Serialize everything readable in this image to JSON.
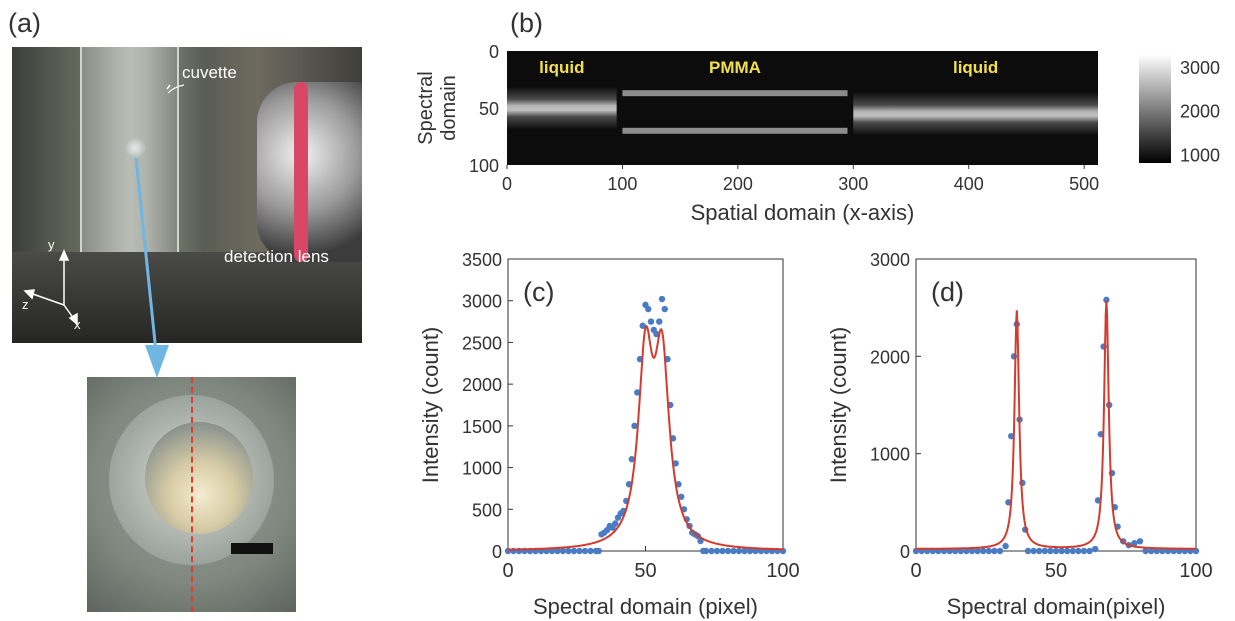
{
  "panels": {
    "a": {
      "label": "(a)",
      "cuvette": "cuvette",
      "detection_lens": "detection lens",
      "axes": {
        "y": "y",
        "z": "z",
        "x": "x"
      }
    },
    "b": {
      "label": "(b)"
    },
    "c": {
      "label": "(c)"
    },
    "d": {
      "label": "(d)"
    }
  },
  "chart_data": [
    {
      "id": "b",
      "type": "heatmap",
      "xlabel": "Spatial domain (x-axis)",
      "ylabel": "Spectral domain",
      "xlim": [
        0,
        512
      ],
      "ylim": [
        0,
        100
      ],
      "xticks": [
        0,
        100,
        200,
        300,
        400,
        500
      ],
      "yticks": [
        0,
        50,
        100
      ],
      "colorbar_ticks": [
        1000,
        2000,
        3000
      ],
      "colormap": "gray",
      "regions": [
        {
          "label": "liquid",
          "x": [
            0,
            95
          ],
          "band_center": 50,
          "type": "single band"
        },
        {
          "label": "PMMA",
          "x": [
            100,
            295
          ],
          "band_center": [
            37,
            70
          ],
          "type": "double band"
        },
        {
          "label": "liquid",
          "x": [
            300,
            512
          ],
          "band_center": 55,
          "type": "single band"
        }
      ],
      "annotation_color": "#f2e04a"
    },
    {
      "id": "c",
      "type": "scatter",
      "xlabel": "Spectral domain (pixel)",
      "ylabel": "Intensity (count)",
      "xlim": [
        0,
        100
      ],
      "ylim": [
        0,
        3500
      ],
      "xticks": [
        0,
        50,
        100
      ],
      "yticks": [
        0,
        500,
        1000,
        1500,
        2000,
        2500,
        3000,
        3500
      ],
      "series": [
        {
          "kind": "points",
          "color": "#4a7cc4",
          "x": [
            0,
            2,
            4,
            6,
            8,
            10,
            12,
            14,
            16,
            18,
            20,
            22,
            24,
            26,
            28,
            30,
            32,
            33,
            34,
            35,
            36,
            37,
            38,
            39,
            40,
            41,
            42,
            43,
            44,
            45,
            46,
            47,
            48,
            49,
            50,
            51,
            52,
            53,
            54,
            55,
            56,
            57,
            58,
            59,
            60,
            61,
            62,
            63,
            64,
            65,
            66,
            67,
            68,
            69,
            70,
            71,
            72,
            74,
            76,
            78,
            80,
            82,
            84,
            86,
            88,
            90,
            92,
            94,
            96,
            98,
            100
          ],
          "y": [
            0,
            0,
            0,
            0,
            0,
            0,
            0,
            0,
            0,
            0,
            0,
            0,
            0,
            0,
            0,
            0,
            0,
            0,
            200,
            220,
            250,
            300,
            280,
            330,
            400,
            450,
            480,
            600,
            800,
            1100,
            1500,
            1900,
            2300,
            2700,
            2950,
            2900,
            2750,
            2650,
            2600,
            2750,
            3020,
            2900,
            2300,
            1750,
            1350,
            1050,
            800,
            650,
            500,
            380,
            300,
            220,
            200,
            180,
            120,
            0,
            0,
            0,
            0,
            0,
            0,
            0,
            0,
            0,
            0,
            0,
            0,
            0,
            0,
            0,
            0
          ]
        },
        {
          "kind": "fit",
          "color": "#d63a2e",
          "x0": [
            50,
            56
          ],
          "gamma": 3.2,
          "amp": [
            2200,
            2150
          ],
          "offset": 0
        }
      ]
    },
    {
      "id": "d",
      "type": "scatter",
      "xlabel": "Spectral domain(pixel)",
      "ylabel": "Intensity (count)",
      "xlim": [
        0,
        100
      ],
      "ylim": [
        0,
        3000
      ],
      "xticks": [
        0,
        50,
        100
      ],
      "yticks": [
        0,
        1000,
        2000,
        3000
      ],
      "series": [
        {
          "kind": "points",
          "color": "#4a7cc4",
          "x": [
            0,
            2,
            4,
            6,
            8,
            10,
            12,
            14,
            16,
            18,
            20,
            22,
            24,
            26,
            28,
            30,
            32,
            33,
            34,
            35,
            36,
            37,
            38,
            39,
            40,
            42,
            44,
            46,
            48,
            50,
            52,
            54,
            56,
            58,
            60,
            62,
            64,
            65,
            66,
            67,
            68,
            69,
            70,
            71,
            72,
            74,
            76,
            78,
            80,
            82,
            84,
            86,
            88,
            90,
            92,
            94,
            96,
            98,
            100
          ],
          "y": [
            0,
            0,
            0,
            0,
            0,
            0,
            0,
            0,
            0,
            0,
            0,
            0,
            0,
            0,
            0,
            0,
            50,
            500,
            1180,
            2000,
            2330,
            1350,
            700,
            220,
            0,
            0,
            0,
            0,
            0,
            0,
            0,
            0,
            0,
            0,
            0,
            0,
            20,
            520,
            1200,
            2100,
            2580,
            1500,
            800,
            450,
            250,
            100,
            60,
            80,
            100,
            0,
            0,
            0,
            0,
            0,
            0,
            0,
            0,
            0,
            0
          ]
        },
        {
          "kind": "fit",
          "color": "#d63a2e",
          "x0": [
            36,
            68
          ],
          "gamma": 1.0,
          "amp": [
            2450,
            2550
          ],
          "offset": 20
        }
      ]
    }
  ]
}
